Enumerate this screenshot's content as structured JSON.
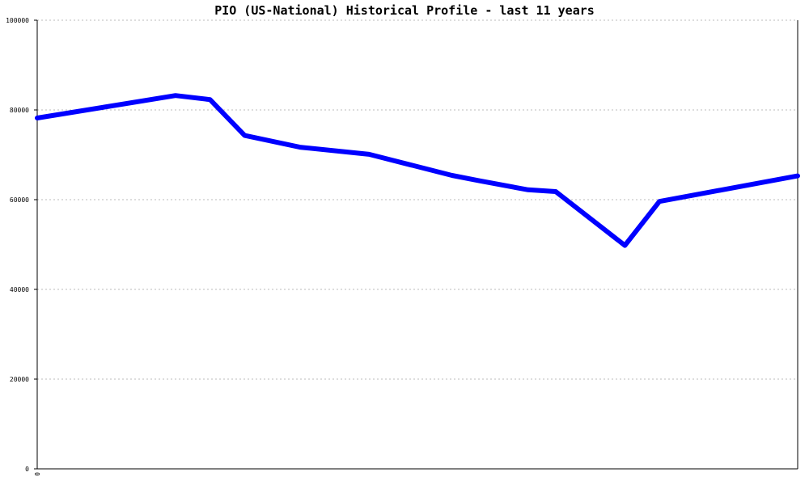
{
  "chart_data": {
    "type": "line",
    "title": "PIO (US-National) Historical Profile - last 11 years",
    "xlabel": "",
    "ylabel": "",
    "ylim": [
      0,
      100000
    ],
    "xlim": [
      0,
      11
    ],
    "y_ticks": [
      "0",
      "20000",
      "40000",
      "60000",
      "80000",
      "100000"
    ],
    "x_tick_labels": [
      "0"
    ],
    "grid": true,
    "series": [
      {
        "color": "#0000ff",
        "x": [
          0,
          2.0,
          2.5,
          3.0,
          3.8,
          4.8,
          6.0,
          6.4,
          7.1,
          7.5,
          8.5,
          9.0,
          11.0
        ],
        "y": [
          78200,
          83200,
          82300,
          74300,
          71700,
          70100,
          65400,
          64200,
          62200,
          61800,
          49800,
          59600,
          65300
        ]
      }
    ]
  }
}
